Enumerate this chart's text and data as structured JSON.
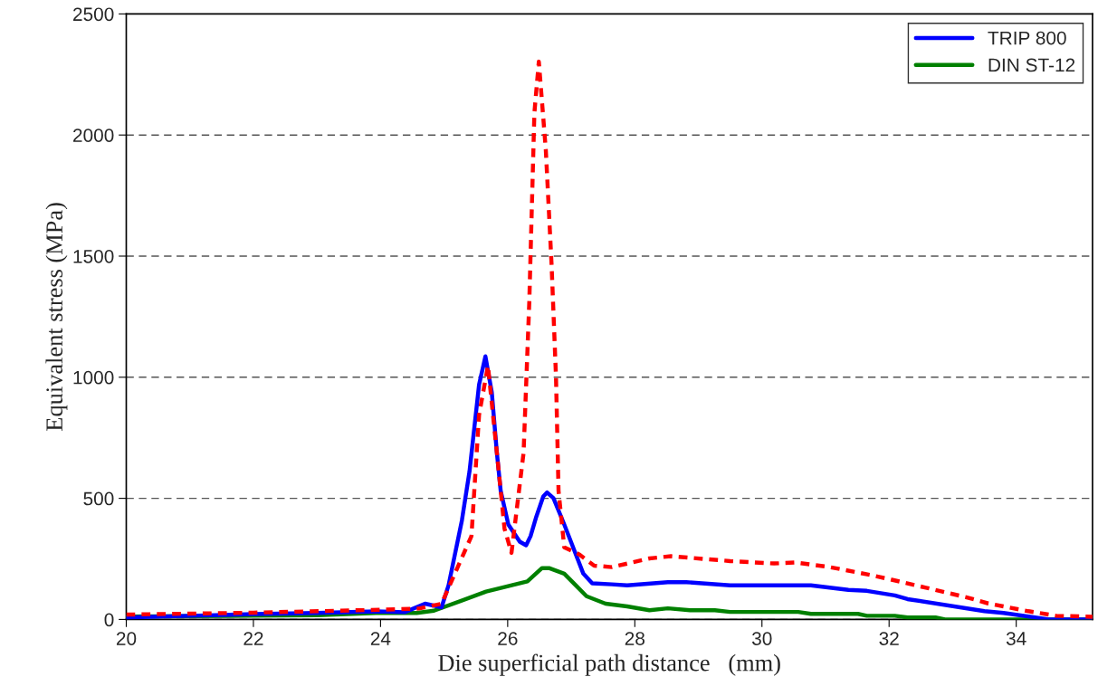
{
  "chart_data": {
    "type": "line",
    "xlabel": "Die superficial path distance   (mm)",
    "ylabel": "Equivalent stress (MPa)",
    "xlim": [
      20,
      35.2
    ],
    "xticks": [
      20,
      22,
      24,
      26,
      28,
      30,
      32,
      34
    ],
    "ylim": [
      0,
      2500
    ],
    "yticks": [
      0,
      500,
      1000,
      1500,
      2000,
      2500
    ],
    "grid": "y",
    "legend": "top right",
    "marker": "none",
    "series": [
      {
        "color": "#ff0000",
        "line_style": "dashed",
        "x": [
          20,
          22,
          24,
          24.6,
          24.96,
          25.43,
          25.55,
          25.69,
          25.83,
          25.95,
          26.06,
          26.25,
          26.34,
          26.42,
          26.49,
          26.6,
          26.69,
          26.76,
          26.8,
          26.89,
          27.13,
          27.36,
          27.64,
          28.23,
          28.57,
          29.5,
          30.19,
          30.53,
          31.07,
          31.7,
          32.04,
          32.58,
          33.21,
          33.56,
          34.19,
          34.63,
          35.2
        ],
        "values": [
          20,
          28,
          40,
          45,
          65,
          344,
          845,
          1047,
          688,
          375,
          275,
          688,
          1311,
          2091,
          2303,
          1938,
          1468,
          1002,
          531,
          298,
          268,
          222,
          216,
          252,
          261,
          241,
          231,
          235,
          216,
          184,
          164,
          131,
          92,
          66,
          34,
          15,
          11
        ]
      },
      {
        "name": "TRIP 800",
        "color": "#0000ff",
        "line_style": "solid",
        "x": [
          20,
          21,
          22,
          23,
          23.93,
          24.38,
          24.7,
          24.96,
          25.07,
          25.28,
          25.4,
          25.55,
          25.65,
          25.75,
          25.83,
          25.89,
          26.01,
          26.19,
          26.29,
          26.36,
          26.45,
          26.56,
          26.62,
          26.72,
          26.89,
          27.19,
          27.33,
          27.64,
          27.88,
          28.52,
          28.81,
          29.5,
          30.77,
          31.36,
          31.65,
          32.09,
          32.29,
          33.5,
          33.8,
          34.49,
          35.2
        ],
        "values": [
          8,
          15,
          22,
          27,
          33,
          30,
          65,
          50,
          141,
          409,
          612,
          969,
          1086,
          938,
          688,
          531,
          392,
          321,
          306,
          344,
          424,
          508,
          524,
          501,
          392,
          189,
          149,
          145,
          141,
          154,
          154,
          141,
          141,
          122,
          118,
          99,
          84,
          34,
          27,
          1,
          0
        ]
      },
      {
        "name": "DIN ST-12",
        "color": "#008000",
        "line_style": "solid",
        "x": [
          20,
          21,
          22,
          23,
          23.93,
          24.57,
          24.84,
          25.66,
          25.95,
          26.31,
          26.54,
          26.65,
          26.89,
          27.07,
          27.24,
          27.54,
          27.88,
          28.23,
          28.52,
          28.87,
          29.26,
          29.5,
          30.57,
          30.77,
          31.51,
          31.65,
          32.09,
          32.29,
          32.73,
          32.88,
          35.2
        ],
        "values": [
          12,
          14,
          15,
          17,
          27,
          27,
          36,
          115,
          134,
          157,
          212,
          212,
          189,
          141,
          96,
          65,
          54,
          38,
          46,
          38,
          38,
          31,
          31,
          23,
          23,
          15,
          15,
          8,
          8,
          0,
          0
        ]
      }
    ]
  }
}
